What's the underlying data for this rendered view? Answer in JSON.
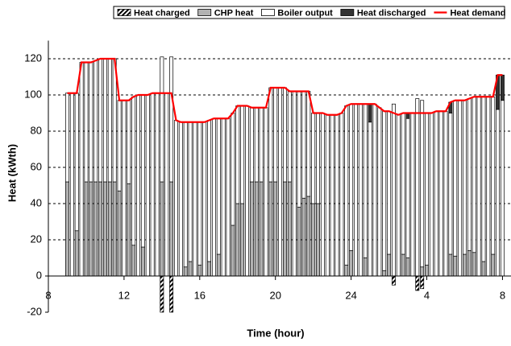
{
  "chart_data": {
    "type": "bar",
    "stacked": true,
    "xlabel": "Time (hour)",
    "ylabel": "Heat (kWth)",
    "x": [
      9,
      9.25,
      9.5,
      9.75,
      10,
      10.25,
      10.5,
      10.75,
      11,
      11.25,
      11.5,
      11.75,
      12,
      12.25,
      12.5,
      12.75,
      13,
      13.25,
      13.5,
      13.75,
      14,
      14.25,
      14.5,
      14.75,
      15,
      15.25,
      15.5,
      15.75,
      16,
      16.25,
      16.5,
      16.75,
      17,
      17.25,
      17.5,
      17.75,
      18,
      18.25,
      18.5,
      18.75,
      19,
      19.25,
      19.5,
      19.75,
      20,
      20.25,
      20.5,
      20.75,
      21,
      21.25,
      21.5,
      21.75,
      22,
      22.25,
      22.5,
      22.75,
      23,
      23.25,
      23.5,
      23.75,
      24,
      24.25,
      24.5,
      24.75,
      25,
      25.25,
      25.5,
      25.75,
      26,
      26.25,
      26.5,
      26.75,
      27,
      27.25,
      27.5,
      27.75,
      28,
      28.25,
      28.5,
      28.75,
      29,
      29.25,
      29.5,
      29.75,
      30,
      30.25,
      30.5,
      30.75,
      31,
      31.25,
      31.5,
      31.75,
      32
    ],
    "xlim": [
      8,
      32.45
    ],
    "xticks": [
      8,
      12,
      16,
      20,
      24,
      {
        "value": 28,
        "label": "4"
      },
      {
        "value": 32,
        "label": "8"
      }
    ],
    "ylim": [
      -20,
      130
    ],
    "yticks": [
      -20,
      0,
      20,
      40,
      60,
      80,
      100,
      120
    ],
    "grid": true,
    "legend": "top",
    "series": [
      {
        "name": "Heat charged",
        "color": "#000000",
        "pattern": "hatch",
        "values": [
          0,
          0,
          0,
          0,
          0,
          0,
          0,
          0,
          0,
          0,
          0,
          0,
          0,
          0,
          0,
          0,
          0,
          0,
          0,
          0,
          -20,
          0,
          -20,
          0,
          0,
          0,
          0,
          0,
          0,
          0,
          0,
          0,
          0,
          0,
          0,
          0,
          0,
          0,
          0,
          0,
          0,
          0,
          0,
          0,
          0,
          0,
          0,
          0,
          0,
          0,
          0,
          0,
          0,
          0,
          0,
          0,
          0,
          0,
          0,
          0,
          0,
          0,
          0,
          0,
          0,
          0,
          0,
          0,
          0,
          -5,
          0,
          0,
          0,
          0,
          -8,
          -7,
          0,
          0,
          0,
          0,
          0,
          0,
          0,
          0,
          0,
          0,
          0,
          0,
          0,
          0,
          0,
          0,
          0
        ]
      },
      {
        "name": "CHP heat",
        "color": "#b2b2b2",
        "values": [
          52,
          0,
          25,
          0,
          52,
          52,
          52,
          52,
          52,
          52,
          52,
          47,
          0,
          51,
          17,
          0,
          16,
          0,
          0,
          0,
          52,
          0,
          52,
          0,
          0,
          5,
          8,
          0,
          6,
          0,
          8,
          0,
          12,
          0,
          0,
          28,
          40,
          40,
          0,
          52,
          52,
          52,
          0,
          52,
          52,
          0,
          52,
          52,
          0,
          38,
          43,
          44,
          40,
          40,
          0,
          0,
          0,
          0,
          0,
          6,
          14,
          0,
          0,
          10,
          0,
          0,
          0,
          3,
          12,
          0,
          0,
          12,
          10,
          0,
          0,
          5,
          6,
          0,
          0,
          0,
          0,
          12,
          11,
          0,
          12,
          14,
          13,
          0,
          8,
          0,
          12,
          0,
          0
        ]
      },
      {
        "name": "Boiler output",
        "color": "#ffffff",
        "values": [
          49,
          101,
          76,
          118,
          66,
          66,
          67,
          68,
          68,
          68,
          68,
          50,
          97,
          46,
          82,
          100,
          84,
          100,
          101,
          101,
          69,
          101,
          69,
          86,
          85,
          80,
          77,
          85,
          79,
          85,
          78,
          87,
          75,
          87,
          87,
          62,
          54,
          54,
          94,
          41,
          41,
          41,
          93,
          52,
          52,
          104,
          52,
          50,
          102,
          64,
          59,
          58,
          50,
          50,
          90,
          89,
          89,
          89,
          90,
          88,
          81,
          95,
          95,
          85,
          85,
          95,
          93,
          88,
          79,
          95,
          89,
          78,
          77,
          90,
          98,
          92,
          84,
          90,
          91,
          91,
          91,
          78,
          86,
          97,
          85,
          84,
          86,
          99,
          91,
          99,
          87,
          92,
          97
        ]
      },
      {
        "name": "Heat discharged",
        "color": "#333333",
        "values": [
          0,
          0,
          0,
          0,
          0,
          0,
          0,
          0,
          0,
          0,
          0,
          0,
          0,
          0,
          0,
          0,
          0,
          0,
          0,
          0,
          0,
          0,
          0,
          0,
          0,
          0,
          0,
          0,
          0,
          0,
          0,
          0,
          0,
          0,
          0,
          0,
          0,
          0,
          0,
          0,
          0,
          0,
          0,
          0,
          0,
          0,
          0,
          0,
          0,
          0,
          0,
          0,
          0,
          0,
          0,
          0,
          0,
          0,
          0,
          0,
          0,
          0,
          0,
          0,
          10,
          0,
          0,
          0,
          0,
          0,
          0,
          0,
          3,
          0,
          0,
          0,
          0,
          0,
          0,
          0,
          0,
          6,
          0,
          0,
          0,
          0,
          0,
          0,
          0,
          0,
          0,
          19,
          14
        ]
      },
      {
        "name": "Heat demand",
        "type": "line",
        "color": "#ff0000",
        "values": [
          101,
          101,
          101,
          118,
          118,
          118,
          119,
          120,
          120,
          120,
          120,
          97,
          97,
          97,
          99,
          100,
          100,
          100,
          101,
          101,
          101,
          101,
          101,
          86,
          85,
          85,
          85,
          85,
          85,
          85,
          86,
          87,
          87,
          87,
          87,
          90,
          94,
          94,
          94,
          93,
          93,
          93,
          93,
          104,
          104,
          104,
          104,
          102,
          102,
          102,
          102,
          102,
          90,
          90,
          90,
          89,
          89,
          89,
          90,
          94,
          95,
          95,
          95,
          95,
          95,
          95,
          93,
          91,
          91,
          90,
          89,
          90,
          90,
          90,
          90,
          90,
          90,
          90,
          91,
          91,
          91,
          96,
          97,
          97,
          97,
          98,
          99,
          99,
          99,
          99,
          99,
          111,
          111
        ]
      }
    ]
  }
}
